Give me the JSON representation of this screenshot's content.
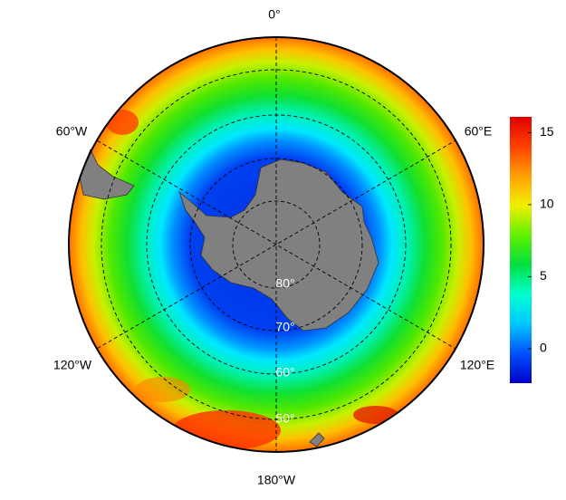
{
  "map": {
    "longitude_labels": [
      "0°",
      "60°E",
      "120°E",
      "180°W",
      "120°W",
      "60°W"
    ],
    "latitude_labels": [
      "80°",
      "70°",
      "60°",
      "50°"
    ],
    "colorbar": {
      "lim": [
        -2.4,
        16.1
      ],
      "ticks": [
        0,
        5,
        10,
        15
      ],
      "colors": [
        "#0000c8",
        "#0050ff",
        "#00c8ff",
        "#00ffd0",
        "#00e040",
        "#60f000",
        "#f0f000",
        "#ffa000",
        "#ff4000",
        "#e00000"
      ]
    }
  }
}
